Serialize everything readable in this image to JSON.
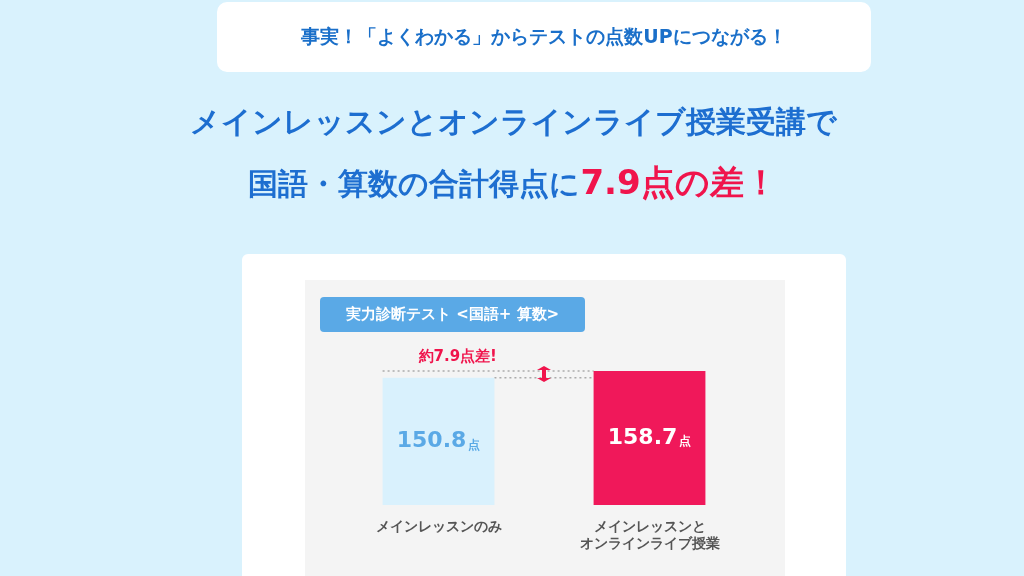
{
  "chart_data": {
    "type": "bar",
    "title": "メインレッスンとオンラインライブ授業受講で国語・算数の合計得点に7.9点の差！",
    "subtitle": "事実！「よくわかる」からテストの点数UPにつながる！",
    "categories": [
      "メインレッスンのみ",
      "メインレッスンとオンラインライブ授業"
    ],
    "values": [
      150.8,
      158.7
    ],
    "colors": [
      "#d9f1fd",
      "#f0185a"
    ],
    "value_labels": [
      "150.8点",
      "158.7点"
    ],
    "tick_labels": "x",
    "grid": false,
    "legend": false,
    "annotations": [
      "実力診断テスト <国語+ 算数>",
      "約7.9点差!"
    ]
  }
}
